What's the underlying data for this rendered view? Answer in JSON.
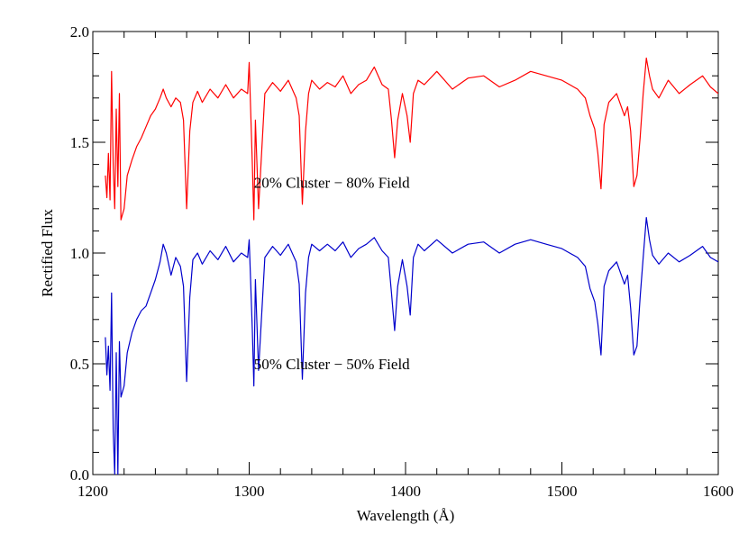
{
  "chart_data": {
    "type": "line",
    "title": "",
    "xlabel": "Wavelength (Å)",
    "ylabel": "Rectified Flux",
    "xlim": [
      1200,
      1600
    ],
    "ylim": [
      0.0,
      2.0
    ],
    "x_ticks": [
      1200,
      1300,
      1400,
      1500,
      1600
    ],
    "x_tick_labels": [
      "1200",
      "1300",
      "1400",
      "1500",
      "1600"
    ],
    "y_ticks": [
      0.0,
      0.5,
      1.0,
      1.5,
      2.0
    ],
    "y_tick_labels": [
      "0.0",
      "0.5",
      "1.0",
      "1.5",
      "2.0"
    ],
    "grid": false,
    "annotations": [
      {
        "text": "20% Cluster − 80% Field",
        "x": 1303,
        "y": 1.32
      },
      {
        "text": "50% Cluster − 50% Field",
        "x": 1303,
        "y": 0.5
      }
    ],
    "series": [
      {
        "color": "#ff0000",
        "x": [
          1208,
          1209,
          1210,
          1211,
          1212,
          1213,
          1214,
          1215,
          1216,
          1217,
          1218,
          1220,
          1222,
          1225,
          1228,
          1231,
          1234,
          1237,
          1240,
          1243,
          1245,
          1247,
          1250,
          1253,
          1256,
          1258,
          1260,
          1262,
          1264,
          1267,
          1270,
          1275,
          1280,
          1285,
          1290,
          1295,
          1299,
          1300,
          1302,
          1303,
          1304,
          1306,
          1310,
          1315,
          1320,
          1325,
          1330,
          1332,
          1334,
          1336,
          1338,
          1340,
          1345,
          1350,
          1355,
          1360,
          1365,
          1370,
          1375,
          1380,
          1385,
          1389,
          1391,
          1393,
          1395,
          1398,
          1401,
          1403,
          1405,
          1408,
          1412,
          1420,
          1430,
          1440,
          1450,
          1460,
          1470,
          1480,
          1490,
          1500,
          1510,
          1515,
          1518,
          1521,
          1523,
          1525,
          1527,
          1530,
          1535,
          1540,
          1542,
          1544,
          1546,
          1548,
          1550,
          1552,
          1554,
          1556,
          1558,
          1562,
          1568,
          1575,
          1582,
          1590,
          1595,
          1600
        ],
        "y": [
          1.35,
          1.25,
          1.45,
          1.24,
          1.82,
          1.4,
          1.2,
          1.65,
          1.3,
          1.72,
          1.15,
          1.2,
          1.35,
          1.42,
          1.48,
          1.52,
          1.57,
          1.62,
          1.65,
          1.7,
          1.74,
          1.7,
          1.66,
          1.7,
          1.68,
          1.6,
          1.2,
          1.55,
          1.68,
          1.73,
          1.68,
          1.74,
          1.7,
          1.76,
          1.7,
          1.74,
          1.72,
          1.86,
          1.4,
          1.15,
          1.6,
          1.2,
          1.72,
          1.77,
          1.73,
          1.78,
          1.7,
          1.62,
          1.22,
          1.55,
          1.72,
          1.78,
          1.74,
          1.77,
          1.75,
          1.8,
          1.72,
          1.76,
          1.78,
          1.84,
          1.76,
          1.74,
          1.6,
          1.43,
          1.6,
          1.72,
          1.62,
          1.5,
          1.72,
          1.78,
          1.76,
          1.82,
          1.74,
          1.79,
          1.8,
          1.75,
          1.78,
          1.82,
          1.8,
          1.78,
          1.74,
          1.7,
          1.62,
          1.56,
          1.45,
          1.29,
          1.58,
          1.68,
          1.72,
          1.62,
          1.66,
          1.55,
          1.3,
          1.35,
          1.52,
          1.72,
          1.88,
          1.8,
          1.74,
          1.7,
          1.78,
          1.72,
          1.76,
          1.8,
          1.75,
          1.72
        ]
      },
      {
        "color": "#0000cc",
        "x": [
          1208,
          1209,
          1210,
          1211,
          1212,
          1213,
          1214,
          1215,
          1216,
          1217,
          1218,
          1220,
          1222,
          1225,
          1228,
          1231,
          1234,
          1237,
          1240,
          1243,
          1245,
          1247,
          1250,
          1253,
          1256,
          1258,
          1260,
          1262,
          1264,
          1267,
          1270,
          1275,
          1280,
          1285,
          1290,
          1295,
          1299,
          1300,
          1302,
          1303,
          1304,
          1306,
          1310,
          1315,
          1320,
          1325,
          1330,
          1332,
          1334,
          1336,
          1338,
          1340,
          1345,
          1350,
          1355,
          1360,
          1365,
          1370,
          1375,
          1380,
          1385,
          1389,
          1391,
          1393,
          1395,
          1398,
          1401,
          1403,
          1405,
          1408,
          1412,
          1420,
          1430,
          1440,
          1450,
          1460,
          1470,
          1480,
          1490,
          1500,
          1510,
          1515,
          1518,
          1521,
          1523,
          1525,
          1527,
          1530,
          1535,
          1540,
          1542,
          1544,
          1546,
          1548,
          1550,
          1552,
          1554,
          1556,
          1558,
          1562,
          1568,
          1575,
          1582,
          1590,
          1595,
          1600
        ],
        "y": [
          0.62,
          0.45,
          0.58,
          0.38,
          0.82,
          0.2,
          0.0,
          0.55,
          0.0,
          0.6,
          0.35,
          0.4,
          0.55,
          0.64,
          0.7,
          0.74,
          0.76,
          0.82,
          0.88,
          0.96,
          1.04,
          1.0,
          0.9,
          0.98,
          0.94,
          0.85,
          0.42,
          0.8,
          0.97,
          1.0,
          0.95,
          1.01,
          0.97,
          1.03,
          0.96,
          1.0,
          0.98,
          1.06,
          0.65,
          0.4,
          0.88,
          0.47,
          0.98,
          1.03,
          0.99,
          1.04,
          0.96,
          0.86,
          0.43,
          0.82,
          0.98,
          1.04,
          1.01,
          1.04,
          1.01,
          1.05,
          0.98,
          1.02,
          1.04,
          1.07,
          1.01,
          0.98,
          0.82,
          0.65,
          0.85,
          0.97,
          0.85,
          0.72,
          0.98,
          1.04,
          1.01,
          1.06,
          1.0,
          1.04,
          1.05,
          1.0,
          1.04,
          1.06,
          1.04,
          1.02,
          0.98,
          0.94,
          0.84,
          0.78,
          0.68,
          0.54,
          0.85,
          0.92,
          0.96,
          0.86,
          0.9,
          0.75,
          0.54,
          0.58,
          0.8,
          0.98,
          1.16,
          1.06,
          0.99,
          0.95,
          1.0,
          0.96,
          0.99,
          1.03,
          0.98,
          0.96
        ]
      }
    ]
  }
}
